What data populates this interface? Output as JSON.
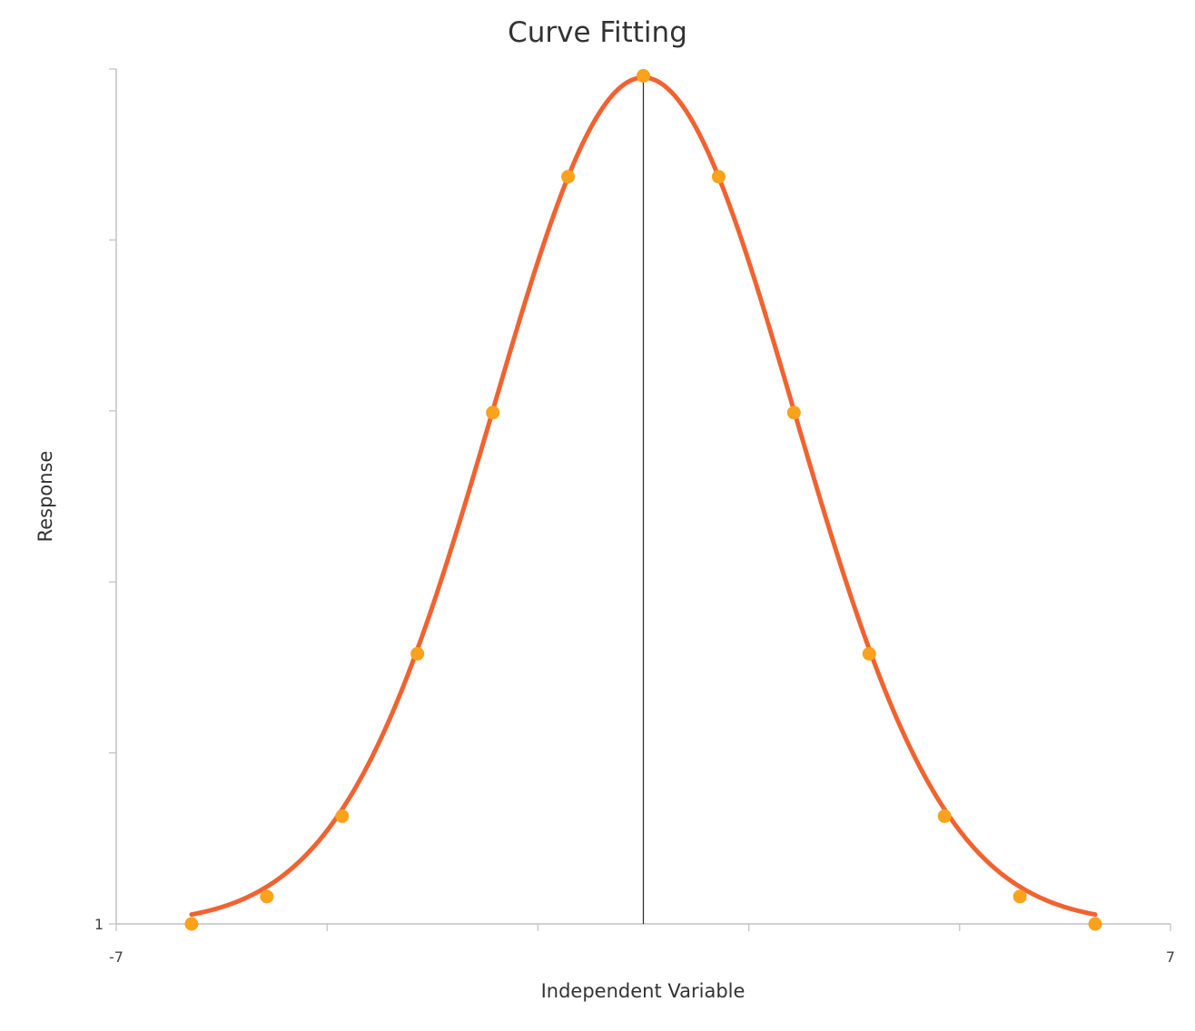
{
  "chart_data": {
    "type": "line",
    "title": "Curve Fitting",
    "xlabel": "Independent Variable",
    "ylabel": "Response",
    "xlim": [
      -7,
      7
    ],
    "ylim": [
      1,
      6
    ],
    "x_tick_labels": [
      {
        "value": -7,
        "label": "-7"
      },
      {
        "value": 7,
        "label": "7"
      }
    ],
    "y_tick_labels": [
      {
        "value": 1,
        "label": "1"
      }
    ],
    "x_ticks": [
      -7,
      -4.2,
      -1.4,
      1.4,
      4.2,
      7
    ],
    "y_ticks": [
      1,
      2,
      3,
      4,
      5,
      6
    ],
    "center_line_x": 0,
    "grid": false,
    "legend": "none",
    "colors": {
      "curve": "#f06331",
      "points": "#faa21b",
      "axis": "#c0c0c0",
      "center_line": "#333333"
    },
    "curve_model": {
      "kind": "gaussian",
      "baseline": 1,
      "amplitude": 4.95,
      "mean": 0,
      "sigma": 2
    },
    "series": [
      {
        "type": "scatter",
        "points": [
          {
            "x": -6,
            "y": 1.0
          },
          {
            "x": -5,
            "y": 1.16
          },
          {
            "x": -4,
            "y": 1.63
          },
          {
            "x": -3,
            "y": 2.58
          },
          {
            "x": -2,
            "y": 3.99
          },
          {
            "x": -1,
            "y": 5.37
          },
          {
            "x": 0,
            "y": 5.96
          },
          {
            "x": 1,
            "y": 5.37
          },
          {
            "x": 2,
            "y": 3.99
          },
          {
            "x": 3,
            "y": 2.58
          },
          {
            "x": 4,
            "y": 1.63
          },
          {
            "x": 5,
            "y": 1.16
          },
          {
            "x": 6,
            "y": 1.0
          }
        ]
      }
    ]
  }
}
